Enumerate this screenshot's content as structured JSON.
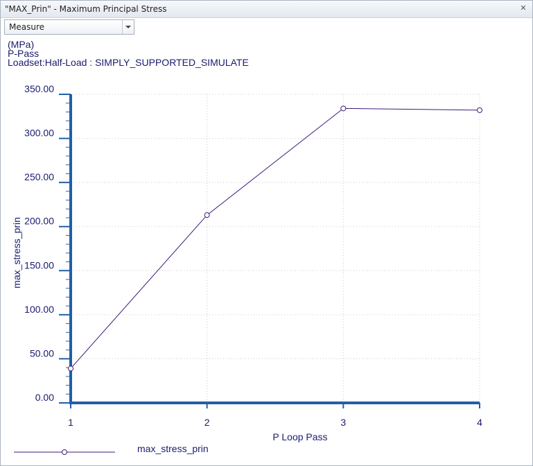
{
  "window": {
    "title": "\"MAX_Prin\" - Maximum Principal Stress",
    "close_glyph": "✕"
  },
  "toolbar": {
    "measure_value": "Measure"
  },
  "header": {
    "line1": "(MPa)",
    "line2": "P-Pass",
    "line3": "Loadset:Half-Load :  SIMPLY_SUPPORTED_SIMULATE"
  },
  "colors": {
    "axis": "#1f5fa8",
    "line": "#3c1a78",
    "grid": "#c8c8c8",
    "text": "#1a1a6e"
  },
  "chart_data": {
    "type": "line",
    "title": "",
    "xlabel": "P Loop Pass",
    "ylabel": "max_stress_prin",
    "x": [
      1,
      2,
      3,
      4
    ],
    "series": [
      {
        "name": "max_stress_prin",
        "values": [
          39,
          213,
          334,
          332
        ]
      }
    ],
    "xlim": [
      1,
      4
    ],
    "ylim": [
      0,
      350
    ],
    "xticks": [
      "1",
      "2",
      "3",
      "4"
    ],
    "yticks": [
      "0.00",
      "50.00",
      "100.00",
      "150.00",
      "200.00",
      "250.00",
      "300.00",
      "350.00"
    ],
    "grid": true,
    "legend_position": "bottom-left"
  }
}
